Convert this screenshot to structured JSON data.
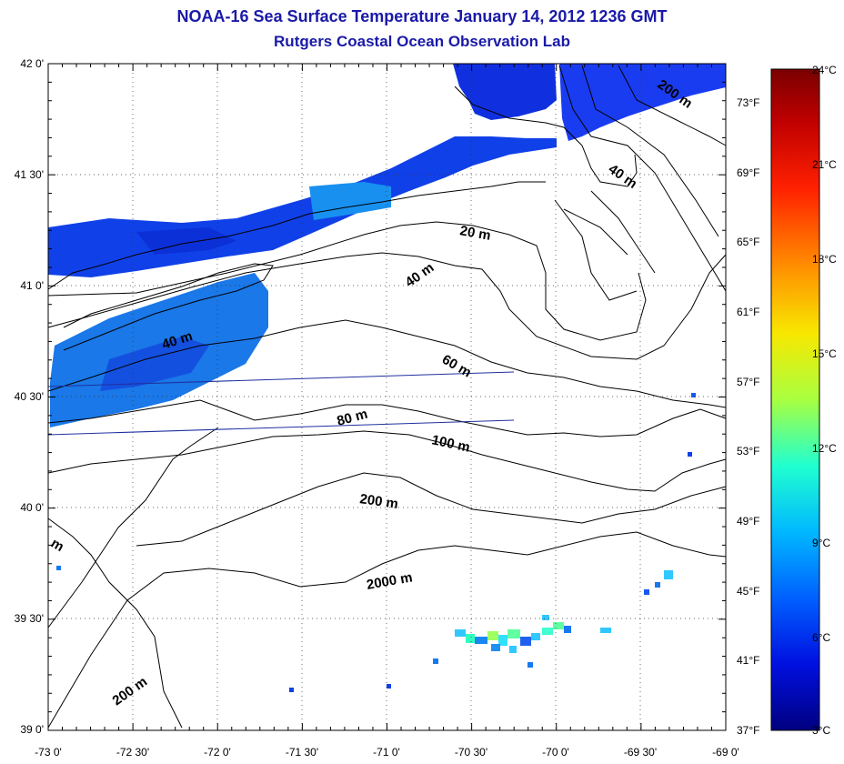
{
  "header": {
    "title": "NOAA-16 Sea Surface Temperature January 14, 2012 1236 GMT",
    "subtitle": "Rutgers Coastal Ocean Observation Lab"
  },
  "map": {
    "lon_ticks": [
      "-73 0'",
      "-72 30'",
      "-72 0'",
      "-71 30'",
      "-71 0'",
      "-70 30'",
      "-70 0'",
      "-69 30'",
      "-69 0'"
    ],
    "lat_ticks": [
      "42 0'",
      "41 30'",
      "41 0'",
      "40 30'",
      "40 0'",
      "39 30'",
      "39 0'"
    ],
    "contour_labels": [
      "200 m",
      "40 m",
      "20 m",
      "40 m",
      "40 m",
      "60 m",
      "80 m",
      "100 m",
      "200 m",
      "2000 m",
      "200 m",
      "m"
    ]
  },
  "colorbar": {
    "celsius": [
      "24°C",
      "21°C",
      "18°C",
      "15°C",
      "12°C",
      "9°C",
      "6°C",
      "3°C"
    ],
    "fahrenheit": [
      "73°F",
      "69°F",
      "65°F",
      "61°F",
      "57°F",
      "53°F",
      "49°F",
      "45°F",
      "41°F",
      "37°F"
    ],
    "colors": [
      "#7a0000",
      "#d40000",
      "#ff5a00",
      "#ffb000",
      "#f0f000",
      "#9cff5a",
      "#30ffc8",
      "#00c8ff",
      "#0070ff",
      "#0010e0",
      "#00008a"
    ]
  }
}
